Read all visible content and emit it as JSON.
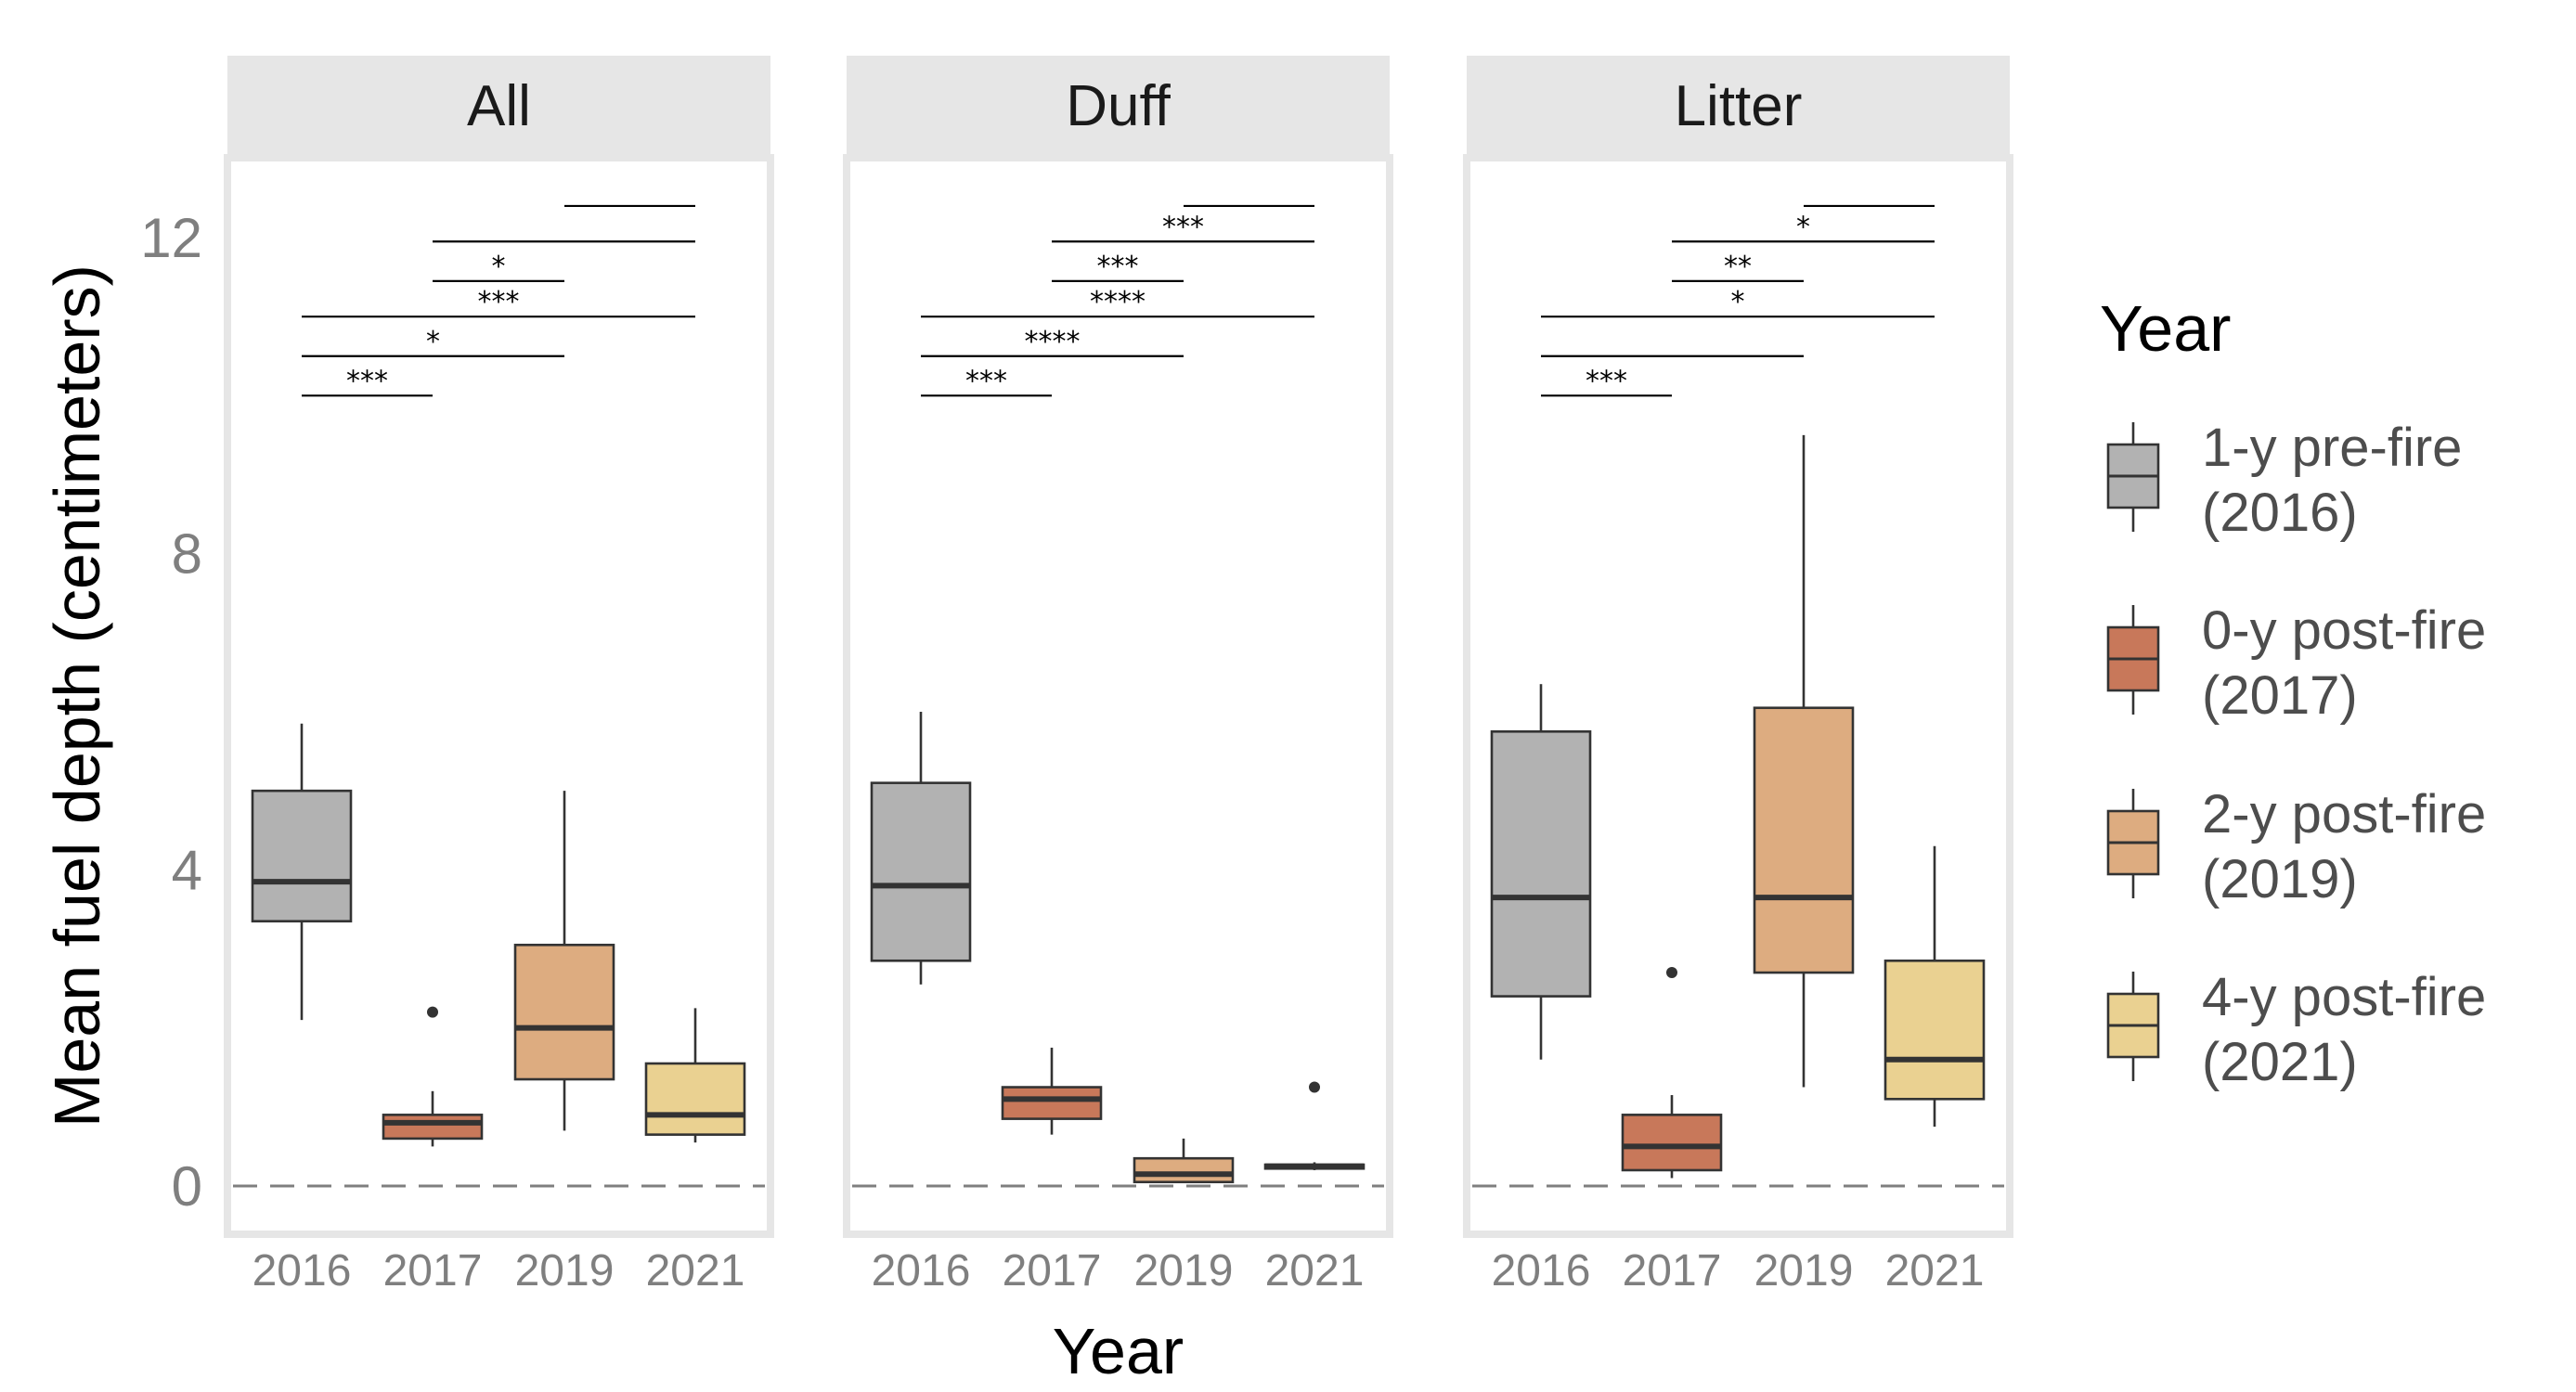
{
  "chart_data": {
    "type": "box",
    "ylabel": "Mean fuel depth (centimeters)",
    "xlabel": "Year",
    "ylim": [
      -0.55,
      14.2
    ],
    "yticks": [
      0,
      4,
      8,
      12
    ],
    "ytick_labels": [
      "0",
      "4",
      "8",
      "12"
    ],
    "categories": [
      "2016",
      "2017",
      "2019",
      "2021"
    ],
    "reference_line": {
      "y": 0,
      "style": "dashed",
      "color": "#7f7f7f"
    },
    "legend": {
      "title": "Year",
      "position": "right",
      "items": [
        {
          "label_line1": "1-y pre-fire",
          "label_line2": "(2016)",
          "color": "#b2b2b2"
        },
        {
          "label_line1": "0-y post-fire",
          "label_line2": "(2017)",
          "color": "#c8785a"
        },
        {
          "label_line1": "2-y post-fire",
          "label_line2": "(2019)",
          "color": "#ddac80"
        },
        {
          "label_line1": "4-y post-fire",
          "label_line2": "(2021)",
          "color": "#ead191"
        }
      ]
    },
    "panels": [
      {
        "title": "All",
        "boxes": [
          {
            "category": "2016",
            "min": 2.1,
            "q1": 3.35,
            "median": 3.85,
            "q3": 5.0,
            "max": 5.85,
            "outliers": []
          },
          {
            "category": "2017",
            "min": 0.5,
            "q1": 0.6,
            "median": 0.8,
            "q3": 0.9,
            "max": 1.2,
            "outliers": [
              2.2
            ]
          },
          {
            "category": "2019",
            "min": 0.7,
            "q1": 1.35,
            "median": 2.0,
            "q3": 3.05,
            "max": 5.0,
            "outliers": []
          },
          {
            "category": "2021",
            "min": 0.55,
            "q1": 0.65,
            "median": 0.9,
            "q3": 1.55,
            "max": 2.25,
            "outliers": []
          }
        ],
        "comparisons": [
          {
            "from": "2016",
            "to": "2017",
            "y": 10.0,
            "label": "***"
          },
          {
            "from": "2016",
            "to": "2019",
            "y": 10.5,
            "label": "*"
          },
          {
            "from": "2016",
            "to": "2021",
            "y": 11.0,
            "label": "***"
          },
          {
            "from": "2017",
            "to": "2019",
            "y": 11.45,
            "label": "*"
          },
          {
            "from": "2017",
            "to": "2021",
            "y": 11.95,
            "label": ""
          },
          {
            "from": "2019",
            "to": "2021",
            "y": 12.4,
            "label": ""
          }
        ]
      },
      {
        "title": "Duff",
        "boxes": [
          {
            "category": "2016",
            "min": 2.55,
            "q1": 2.85,
            "median": 3.8,
            "q3": 5.1,
            "max": 6.0,
            "outliers": []
          },
          {
            "category": "2017",
            "min": 0.65,
            "q1": 0.85,
            "median": 1.1,
            "q3": 1.25,
            "max": 1.75,
            "outliers": []
          },
          {
            "category": "2019",
            "min": 0.05,
            "q1": 0.05,
            "median": 0.15,
            "q3": 0.35,
            "max": 0.6,
            "outliers": []
          },
          {
            "category": "2021",
            "min": 0.2,
            "q1": 0.22,
            "median": 0.25,
            "q3": 0.27,
            "max": 0.3,
            "outliers": [
              1.25
            ]
          }
        ],
        "comparisons": [
          {
            "from": "2016",
            "to": "2017",
            "y": 10.0,
            "label": "***"
          },
          {
            "from": "2016",
            "to": "2019",
            "y": 10.5,
            "label": "****"
          },
          {
            "from": "2016",
            "to": "2021",
            "y": 11.0,
            "label": "****"
          },
          {
            "from": "2017",
            "to": "2019",
            "y": 11.45,
            "label": "***"
          },
          {
            "from": "2017",
            "to": "2021",
            "y": 11.95,
            "label": "***"
          },
          {
            "from": "2019",
            "to": "2021",
            "y": 12.4,
            "label": ""
          }
        ]
      },
      {
        "title": "Litter",
        "boxes": [
          {
            "category": "2016",
            "min": 1.6,
            "q1": 2.4,
            "median": 3.65,
            "q3": 5.75,
            "max": 6.35,
            "outliers": []
          },
          {
            "category": "2017",
            "min": 0.1,
            "q1": 0.2,
            "median": 0.5,
            "q3": 0.9,
            "max": 1.15,
            "outliers": [
              2.7
            ]
          },
          {
            "category": "2019",
            "min": 1.25,
            "q1": 2.7,
            "median": 3.65,
            "q3": 6.05,
            "max": 9.5,
            "outliers": []
          },
          {
            "category": "2021",
            "min": 0.75,
            "q1": 1.1,
            "median": 1.6,
            "q3": 2.85,
            "max": 4.3,
            "outliers": []
          }
        ],
        "comparisons": [
          {
            "from": "2016",
            "to": "2017",
            "y": 10.0,
            "label": "***"
          },
          {
            "from": "2016",
            "to": "2019",
            "y": 10.5,
            "label": ""
          },
          {
            "from": "2016",
            "to": "2021",
            "y": 11.0,
            "label": "*"
          },
          {
            "from": "2017",
            "to": "2019",
            "y": 11.45,
            "label": "**"
          },
          {
            "from": "2017",
            "to": "2021",
            "y": 11.95,
            "label": "*"
          },
          {
            "from": "2019",
            "to": "2021",
            "y": 12.4,
            "label": ""
          }
        ]
      }
    ]
  }
}
